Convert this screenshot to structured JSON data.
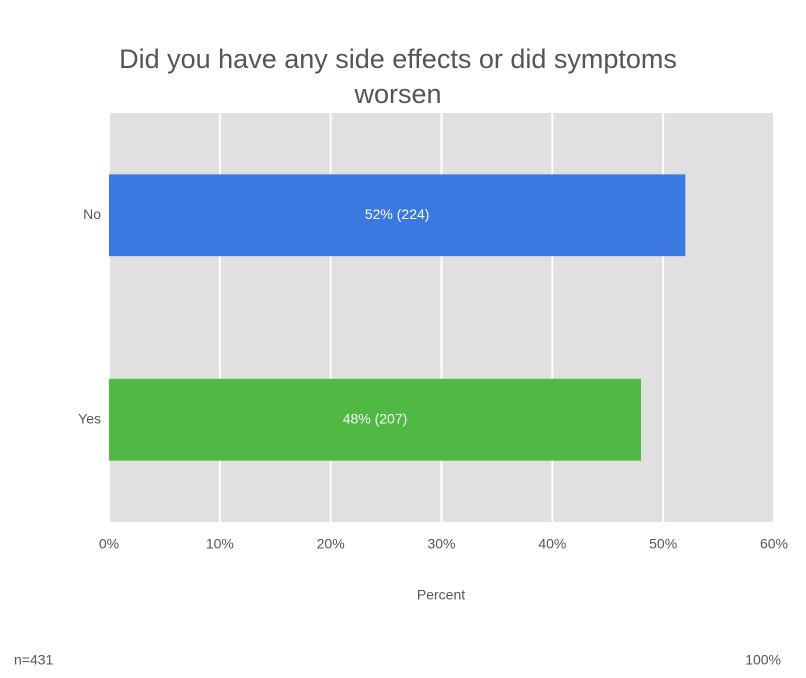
{
  "chart_data": {
    "type": "bar",
    "orientation": "horizontal",
    "title": "Did you have any side effects or did symptoms worsen",
    "categories": [
      "No",
      "Yes"
    ],
    "values": [
      52,
      48
    ],
    "value_labels": [
      "52% (224)",
      "48% (207)"
    ],
    "colors": [
      "#3b78e0",
      "#4fb944"
    ],
    "xlim": [
      0,
      60
    ],
    "xticks": [
      {
        "value": 0,
        "label": "0%"
      },
      {
        "value": 10,
        "label": "10%"
      },
      {
        "value": 20,
        "label": "20%"
      },
      {
        "value": 30,
        "label": "30%"
      },
      {
        "value": 40,
        "label": "40%"
      },
      {
        "value": 50,
        "label": "50%"
      },
      {
        "value": 60,
        "label": "60%"
      }
    ],
    "xlabel": "Percent",
    "grid": true,
    "notes": [
      "n=431",
      "100%"
    ]
  }
}
